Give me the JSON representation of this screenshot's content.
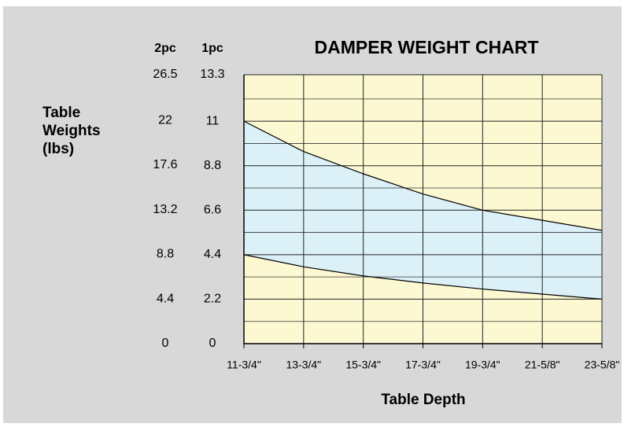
{
  "chart_data": {
    "type": "band",
    "title": "DAMPER WEIGHT CHART",
    "y_title": "Table Weights (lbs)",
    "x_title": "Table Depth",
    "y_label": "1pc",
    "y2_label": "2pc",
    "categories": [
      "11-3/4\"",
      "13-3/4\"",
      "15-3/4\"",
      "17-3/4\"",
      "19-3/4\"",
      "21-5/8\"",
      "23-5/8\""
    ],
    "series": [
      {
        "color": "#000000",
        "values": [
          11,
          9.5,
          8.4,
          7.4,
          6.6,
          6.1,
          5.6
        ]
      },
      {
        "color": "#000000",
        "values": [
          4.4,
          3.8,
          3.35,
          3.0,
          2.7,
          2.45,
          2.2
        ]
      }
    ],
    "band_color": "#dcf0f8",
    "plot_color": "#fcf8d2",
    "ylim": [
      0,
      13.3
    ],
    "yticks": [
      0,
      2.2,
      4.4,
      6.6,
      8.8,
      11,
      13.3
    ],
    "y2lim": [
      0,
      26.5
    ],
    "y2ticks": [
      0,
      4.4,
      8.8,
      13.2,
      17.6,
      22,
      26.5
    ],
    "minor_yticks": [
      1.1,
      3.3,
      5.5,
      7.7,
      9.9,
      12.1
    ],
    "grid": true
  }
}
